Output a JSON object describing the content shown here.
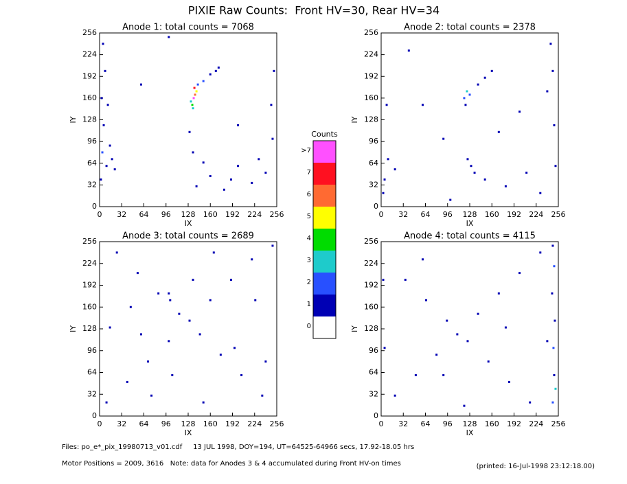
{
  "title": "PIXIE Raw Counts:  Front HV=30, Rear HV=34",
  "chart_data": [
    {
      "type": "scatter",
      "title": "Anode 1: total counts = 7068",
      "x_label": "IX",
      "y_label": "IY",
      "xlim": [
        0,
        256
      ],
      "ylim": [
        0,
        256
      ],
      "xticks": [
        0,
        32,
        64,
        96,
        128,
        160,
        192,
        224,
        256
      ],
      "yticks": [
        0,
        32,
        64,
        96,
        128,
        160,
        192,
        224,
        256
      ],
      "x": [
        136,
        138,
        134,
        140,
        132,
        137,
        142,
        135,
        150,
        160,
        168,
        172,
        2,
        4,
        6,
        3,
        8,
        5,
        10,
        12,
        18,
        22,
        15,
        140,
        160,
        180,
        200,
        220,
        240,
        150,
        190,
        230,
        135,
        250,
        252,
        248,
        100,
        60,
        200,
        130
      ],
      "y": [
        160,
        165,
        150,
        170,
        155,
        175,
        180,
        145,
        185,
        195,
        200,
        205,
        40,
        80,
        120,
        160,
        200,
        240,
        60,
        150,
        70,
        55,
        90,
        30,
        45,
        25,
        60,
        35,
        50,
        65,
        40,
        70,
        80,
        100,
        200,
        150,
        250,
        180,
        120,
        110
      ],
      "counts": [
        8,
        6,
        4,
        5,
        3,
        7,
        2,
        3,
        2,
        1,
        1,
        1,
        1,
        2,
        1,
        1,
        1,
        1,
        1,
        1,
        1,
        1,
        1,
        1,
        1,
        1,
        1,
        1,
        1,
        1,
        1,
        1,
        1,
        1,
        1,
        1,
        1,
        1,
        1,
        1
      ]
    },
    {
      "type": "scatter",
      "title": "Anode 2: total counts = 2378",
      "x_label": "IX",
      "y_label": "IY",
      "xlim": [
        0,
        256
      ],
      "ylim": [
        0,
        256
      ],
      "xticks": [
        0,
        32,
        64,
        96,
        128,
        160,
        192,
        224,
        256
      ],
      "yticks": [
        0,
        32,
        64,
        96,
        128,
        160,
        192,
        224,
        256
      ],
      "x": [
        120,
        124,
        128,
        122,
        140,
        150,
        160,
        5,
        10,
        3,
        20,
        250,
        248,
        252,
        245,
        130,
        150,
        180,
        210,
        230,
        60,
        90,
        40,
        200,
        170,
        125,
        135,
        8,
        240,
        100
      ],
      "y": [
        160,
        170,
        165,
        150,
        180,
        190,
        200,
        40,
        70,
        20,
        55,
        120,
        200,
        60,
        240,
        60,
        40,
        30,
        50,
        20,
        150,
        100,
        230,
        140,
        110,
        70,
        50,
        150,
        170,
        10
      ],
      "counts": [
        2,
        3,
        2,
        1,
        1,
        1,
        1,
        1,
        1,
        1,
        1,
        1,
        1,
        1,
        1,
        1,
        1,
        1,
        1,
        1,
        1,
        1,
        1,
        1,
        1,
        1,
        1,
        1,
        1,
        1
      ]
    },
    {
      "type": "scatter",
      "title": "Anode 3: total counts = 2689",
      "x_label": "IX",
      "y_label": "IY",
      "xlim": [
        0,
        256
      ],
      "ylim": [
        0,
        256
      ],
      "xticks": [
        0,
        32,
        64,
        96,
        128,
        160,
        192,
        224,
        256
      ],
      "yticks": [
        0,
        32,
        64,
        96,
        128,
        160,
        192,
        224,
        256
      ],
      "x": [
        10,
        40,
        70,
        100,
        130,
        160,
        190,
        220,
        250,
        25,
        55,
        85,
        115,
        145,
        175,
        205,
        235,
        15,
        45,
        75,
        105,
        135,
        165,
        195,
        225,
        100,
        102,
        60,
        150,
        240
      ],
      "y": [
        20,
        50,
        80,
        110,
        140,
        170,
        200,
        230,
        250,
        240,
        210,
        180,
        150,
        120,
        90,
        60,
        30,
        130,
        160,
        30,
        60,
        200,
        240,
        100,
        170,
        180,
        170,
        120,
        20,
        80
      ],
      "counts": [
        1,
        1,
        1,
        1,
        1,
        1,
        1,
        1,
        1,
        1,
        1,
        1,
        1,
        1,
        1,
        1,
        1,
        1,
        1,
        1,
        1,
        1,
        1,
        1,
        1,
        1,
        1,
        1,
        1,
        1
      ]
    },
    {
      "type": "scatter",
      "title": "Anode 4: total counts = 4115",
      "x_label": "IX",
      "y_label": "IY",
      "xlim": [
        0,
        256
      ],
      "ylim": [
        0,
        256
      ],
      "xticks": [
        0,
        32,
        64,
        96,
        128,
        160,
        192,
        224,
        256
      ],
      "yticks": [
        0,
        32,
        64,
        96,
        128,
        160,
        192,
        224,
        256
      ],
      "x": [
        248,
        250,
        249,
        251,
        247,
        250,
        248,
        252,
        20,
        50,
        80,
        110,
        140,
        170,
        200,
        230,
        35,
        65,
        95,
        125,
        155,
        185,
        215,
        5,
        3,
        60,
        120,
        180,
        240,
        90
      ],
      "y": [
        20,
        60,
        100,
        140,
        180,
        220,
        250,
        40,
        30,
        60,
        90,
        120,
        150,
        180,
        210,
        240,
        200,
        170,
        140,
        110,
        80,
        50,
        20,
        100,
        200,
        230,
        15,
        130,
        110,
        60
      ],
      "counts": [
        2,
        1,
        2,
        1,
        1,
        2,
        1,
        3,
        1,
        1,
        1,
        1,
        1,
        1,
        1,
        1,
        1,
        1,
        1,
        1,
        1,
        1,
        1,
        1,
        1,
        1,
        1,
        1,
        1,
        1
      ]
    }
  ],
  "colorbar": {
    "title": "Counts",
    "levels": [
      0,
      1,
      2,
      3,
      4,
      5,
      6,
      7,
      {
        "value": 8,
        "label": ">7"
      }
    ],
    "colors": [
      "#ffffff",
      "#0000b4",
      "#2850ff",
      "#1ecbcb",
      "#00dc00",
      "#ffff00",
      "#ff6a32",
      "#ff1020",
      "#ff50ff"
    ]
  },
  "footer": {
    "files": "Files: po_e*_pix_19980713_v01.cdf     13 JUL 1998, DOY=194, UT=64525-64966 secs, 17.92-18.05 hrs",
    "motor": "Motor Positions = 2009, 3616   Note: data for Anodes 3 & 4 accumulated during Front HV-on times",
    "printed": "(printed: 16-Jul-1998 23:12:18.00)"
  }
}
